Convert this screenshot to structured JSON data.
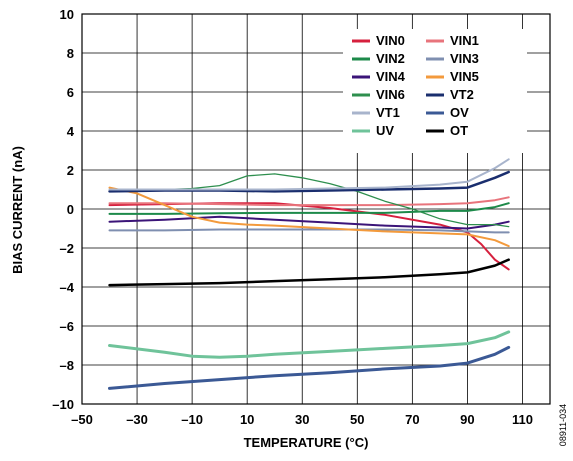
{
  "chart_data": {
    "type": "line",
    "xlabel": "TEMPERATURE (°C)",
    "ylabel": "BIAS CURRENT (nA)",
    "xlim": [
      -50,
      120
    ],
    "ylim": [
      -10,
      10
    ],
    "xticks": [
      "–50",
      "–30",
      "–10",
      "10",
      "30",
      "50",
      "70",
      "90",
      "110"
    ],
    "yticks": [
      "10",
      "8",
      "6",
      "4",
      "2",
      "0",
      "–2",
      "–4",
      "–6",
      "–8",
      "–10"
    ],
    "grid": true,
    "legend_position": "top-right",
    "figure_id": "08911-034",
    "series": [
      {
        "name": "VIN0",
        "color": "#d6203e",
        "width": 2,
        "x": [
          -40,
          -20,
          0,
          20,
          40,
          60,
          80,
          90,
          95,
          100,
          105
        ],
        "y": [
          0.2,
          0.25,
          0.3,
          0.3,
          0.05,
          -0.3,
          -0.8,
          -1.2,
          -1.8,
          -2.6,
          -3.1
        ]
      },
      {
        "name": "VIN1",
        "color": "#e8747c",
        "width": 2,
        "x": [
          -40,
          -20,
          0,
          20,
          40,
          60,
          80,
          90,
          100,
          105
        ],
        "y": [
          0.3,
          0.3,
          0.25,
          0.2,
          0.2,
          0.2,
          0.25,
          0.3,
          0.45,
          0.6
        ]
      },
      {
        "name": "VIN2",
        "color": "#1d8a4a",
        "width": 2,
        "x": [
          -40,
          -20,
          0,
          20,
          40,
          60,
          80,
          90,
          100,
          105
        ],
        "y": [
          -0.25,
          -0.25,
          -0.22,
          -0.2,
          -0.2,
          -0.2,
          -0.1,
          -0.1,
          0.1,
          0.3
        ]
      },
      {
        "name": "VIN3",
        "color": "#7f8fb0",
        "width": 2,
        "x": [
          -40,
          -20,
          0,
          20,
          40,
          60,
          80,
          90,
          100,
          105
        ],
        "y": [
          -1.1,
          -1.1,
          -1.05,
          -1.05,
          -1.05,
          -1.05,
          -1.1,
          -1.15,
          -1.2,
          -1.2
        ]
      },
      {
        "name": "VIN4",
        "color": "#3b1478",
        "width": 2,
        "x": [
          -40,
          -20,
          0,
          20,
          40,
          60,
          80,
          90,
          100,
          105
        ],
        "y": [
          -0.65,
          -0.55,
          -0.4,
          -0.55,
          -0.7,
          -0.85,
          -0.95,
          -1.0,
          -0.8,
          -0.65
        ]
      },
      {
        "name": "VIN5",
        "color": "#f39a3c",
        "width": 2,
        "x": [
          -40,
          -30,
          -20,
          -10,
          0,
          10,
          20,
          40,
          60,
          80,
          90,
          100,
          105
        ],
        "y": [
          1.1,
          0.8,
          0.2,
          -0.4,
          -0.7,
          -0.8,
          -0.85,
          -1.0,
          -1.15,
          -1.25,
          -1.3,
          -1.6,
          -1.9
        ]
      },
      {
        "name": "VIN6",
        "color": "#2e8f4e",
        "width": 1.3,
        "x": [
          -40,
          -20,
          -10,
          0,
          10,
          20,
          30,
          40,
          50,
          60,
          70,
          80,
          90,
          100,
          105
        ],
        "y": [
          0.9,
          1.0,
          1.05,
          1.2,
          1.7,
          1.8,
          1.6,
          1.3,
          0.9,
          0.4,
          0.0,
          -0.5,
          -0.8,
          -0.8,
          -0.9
        ]
      },
      {
        "name": "VT2",
        "color": "#1a2e6e",
        "width": 2.5,
        "x": [
          -40,
          -20,
          0,
          20,
          40,
          60,
          80,
          90,
          100,
          105
        ],
        "y": [
          0.9,
          0.95,
          0.95,
          0.9,
          0.95,
          1.0,
          1.05,
          1.1,
          1.6,
          1.9
        ]
      },
      {
        "name": "VT1",
        "color": "#a8b4cc",
        "width": 2,
        "x": [
          -40,
          -20,
          0,
          20,
          40,
          60,
          80,
          90,
          100,
          105
        ],
        "y": [
          1.0,
          1.0,
          1.0,
          1.0,
          1.05,
          1.1,
          1.25,
          1.4,
          2.1,
          2.55
        ]
      },
      {
        "name": "OV",
        "color": "#3b5995",
        "width": 3,
        "x": [
          -40,
          -20,
          0,
          20,
          40,
          60,
          80,
          90,
          100,
          105
        ],
        "y": [
          -9.2,
          -8.95,
          -8.75,
          -8.55,
          -8.4,
          -8.2,
          -8.05,
          -7.9,
          -7.45,
          -7.1
        ]
      },
      {
        "name": "UV",
        "color": "#6fc39a",
        "width": 3,
        "x": [
          -40,
          -20,
          -10,
          0,
          10,
          20,
          40,
          60,
          80,
          90,
          100,
          105
        ],
        "y": [
          -7.0,
          -7.35,
          -7.55,
          -7.6,
          -7.55,
          -7.45,
          -7.3,
          -7.15,
          -7.0,
          -6.9,
          -6.6,
          -6.3
        ]
      },
      {
        "name": "OT",
        "color": "#000000",
        "width": 2.5,
        "x": [
          -40,
          -20,
          0,
          20,
          40,
          60,
          80,
          90,
          100,
          105
        ],
        "y": [
          -3.9,
          -3.85,
          -3.8,
          -3.7,
          -3.6,
          -3.5,
          -3.35,
          -3.25,
          -2.9,
          -2.6
        ]
      }
    ]
  }
}
